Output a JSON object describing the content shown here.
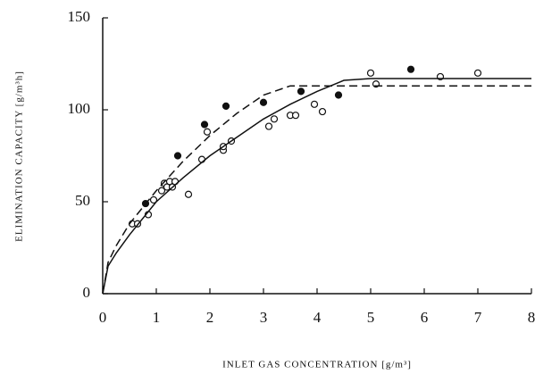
{
  "chart_data": {
    "type": "scatter",
    "xlabel": "INLET GAS CONCENTRATION [g/m³]",
    "ylabel": "ELIMINATION CAPACITY [g/m³h]",
    "xlim": [
      0,
      8
    ],
    "xticks": [
      0,
      1,
      2,
      3,
      4,
      5,
      6,
      7,
      8
    ],
    "ylim": [
      0,
      150
    ],
    "yticks": [
      0,
      50,
      100,
      150
    ],
    "grid": false,
    "series": [
      {
        "mode": "markers",
        "marker": "open",
        "color": "#111111",
        "x": [
          0.55,
          0.65,
          0.85,
          0.95,
          1.1,
          1.15,
          1.2,
          1.25,
          1.3,
          1.35,
          1.6,
          1.85,
          1.95,
          2.25,
          2.25,
          2.4,
          3.1,
          3.2,
          3.5,
          3.6,
          3.95,
          4.1,
          5.0,
          5.1,
          6.3,
          7.0
        ],
        "values": [
          38,
          38,
          43,
          51,
          56,
          60,
          58,
          61,
          58,
          61,
          54,
          73,
          88,
          78,
          80,
          83,
          91,
          95,
          97,
          97,
          103,
          99,
          120,
          114,
          118,
          120
        ]
      },
      {
        "mode": "markers",
        "marker": "filled",
        "color": "#111111",
        "x": [
          0.8,
          1.4,
          1.9,
          2.3,
          3.0,
          3.7,
          4.4,
          5.75
        ],
        "values": [
          49,
          75,
          92,
          102,
          104,
          110,
          108,
          122
        ]
      },
      {
        "mode": "line",
        "dash": false,
        "color": "#111111",
        "x": [
          0,
          0.1,
          0.25,
          0.5,
          1,
          1.5,
          2,
          2.5,
          3,
          3.5,
          4,
          4.5,
          5,
          8
        ],
        "values": [
          0,
          15,
          22,
          32,
          50,
          63,
          75,
          85,
          95,
          103,
          110,
          116,
          117,
          117
        ]
      },
      {
        "mode": "line",
        "dash": true,
        "color": "#111111",
        "x": [
          0,
          0.1,
          0.25,
          0.5,
          1,
          1.5,
          2,
          2.5,
          3,
          3.5,
          4,
          8
        ],
        "values": [
          0,
          17,
          26,
          38,
          56,
          72,
          86,
          98,
          108,
          113,
          113,
          113
        ]
      }
    ]
  }
}
